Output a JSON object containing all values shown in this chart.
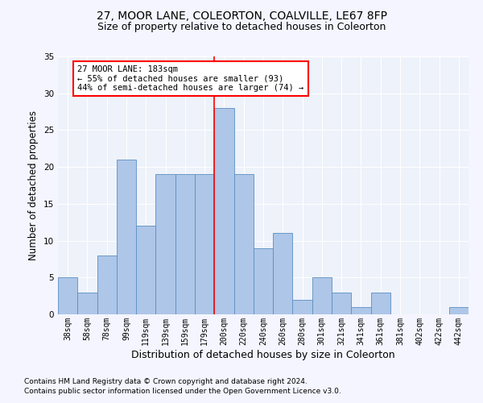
{
  "title1": "27, MOOR LANE, COLEORTON, COALVILLE, LE67 8FP",
  "title2": "Size of property relative to detached houses in Coleorton",
  "xlabel": "Distribution of detached houses by size in Coleorton",
  "ylabel": "Number of detached properties",
  "categories": [
    "38sqm",
    "58sqm",
    "78sqm",
    "99sqm",
    "119sqm",
    "139sqm",
    "159sqm",
    "179sqm",
    "200sqm",
    "220sqm",
    "240sqm",
    "260sqm",
    "280sqm",
    "301sqm",
    "321sqm",
    "341sqm",
    "361sqm",
    "381sqm",
    "402sqm",
    "422sqm",
    "442sqm"
  ],
  "values": [
    5,
    3,
    8,
    21,
    12,
    19,
    19,
    19,
    28,
    19,
    9,
    11,
    2,
    5,
    3,
    1,
    3,
    0,
    0,
    0,
    1
  ],
  "bar_color": "#aec6e8",
  "bar_edge_color": "#5a8fc2",
  "annotation_text": "27 MOOR LANE: 183sqm\n← 55% of detached houses are smaller (93)\n44% of semi-detached houses are larger (74) →",
  "ylim": [
    0,
    35
  ],
  "yticks": [
    0,
    5,
    10,
    15,
    20,
    25,
    30,
    35
  ],
  "footnote1": "Contains HM Land Registry data © Crown copyright and database right 2024.",
  "footnote2": "Contains public sector information licensed under the Open Government Licence v3.0.",
  "bg_color": "#eef2fa",
  "grid_color": "#ffffff",
  "title1_fontsize": 10,
  "title2_fontsize": 9,
  "xlabel_fontsize": 9,
  "ylabel_fontsize": 8.5,
  "tick_fontsize": 7,
  "footnote_fontsize": 6.5,
  "annot_fontsize": 7.5
}
